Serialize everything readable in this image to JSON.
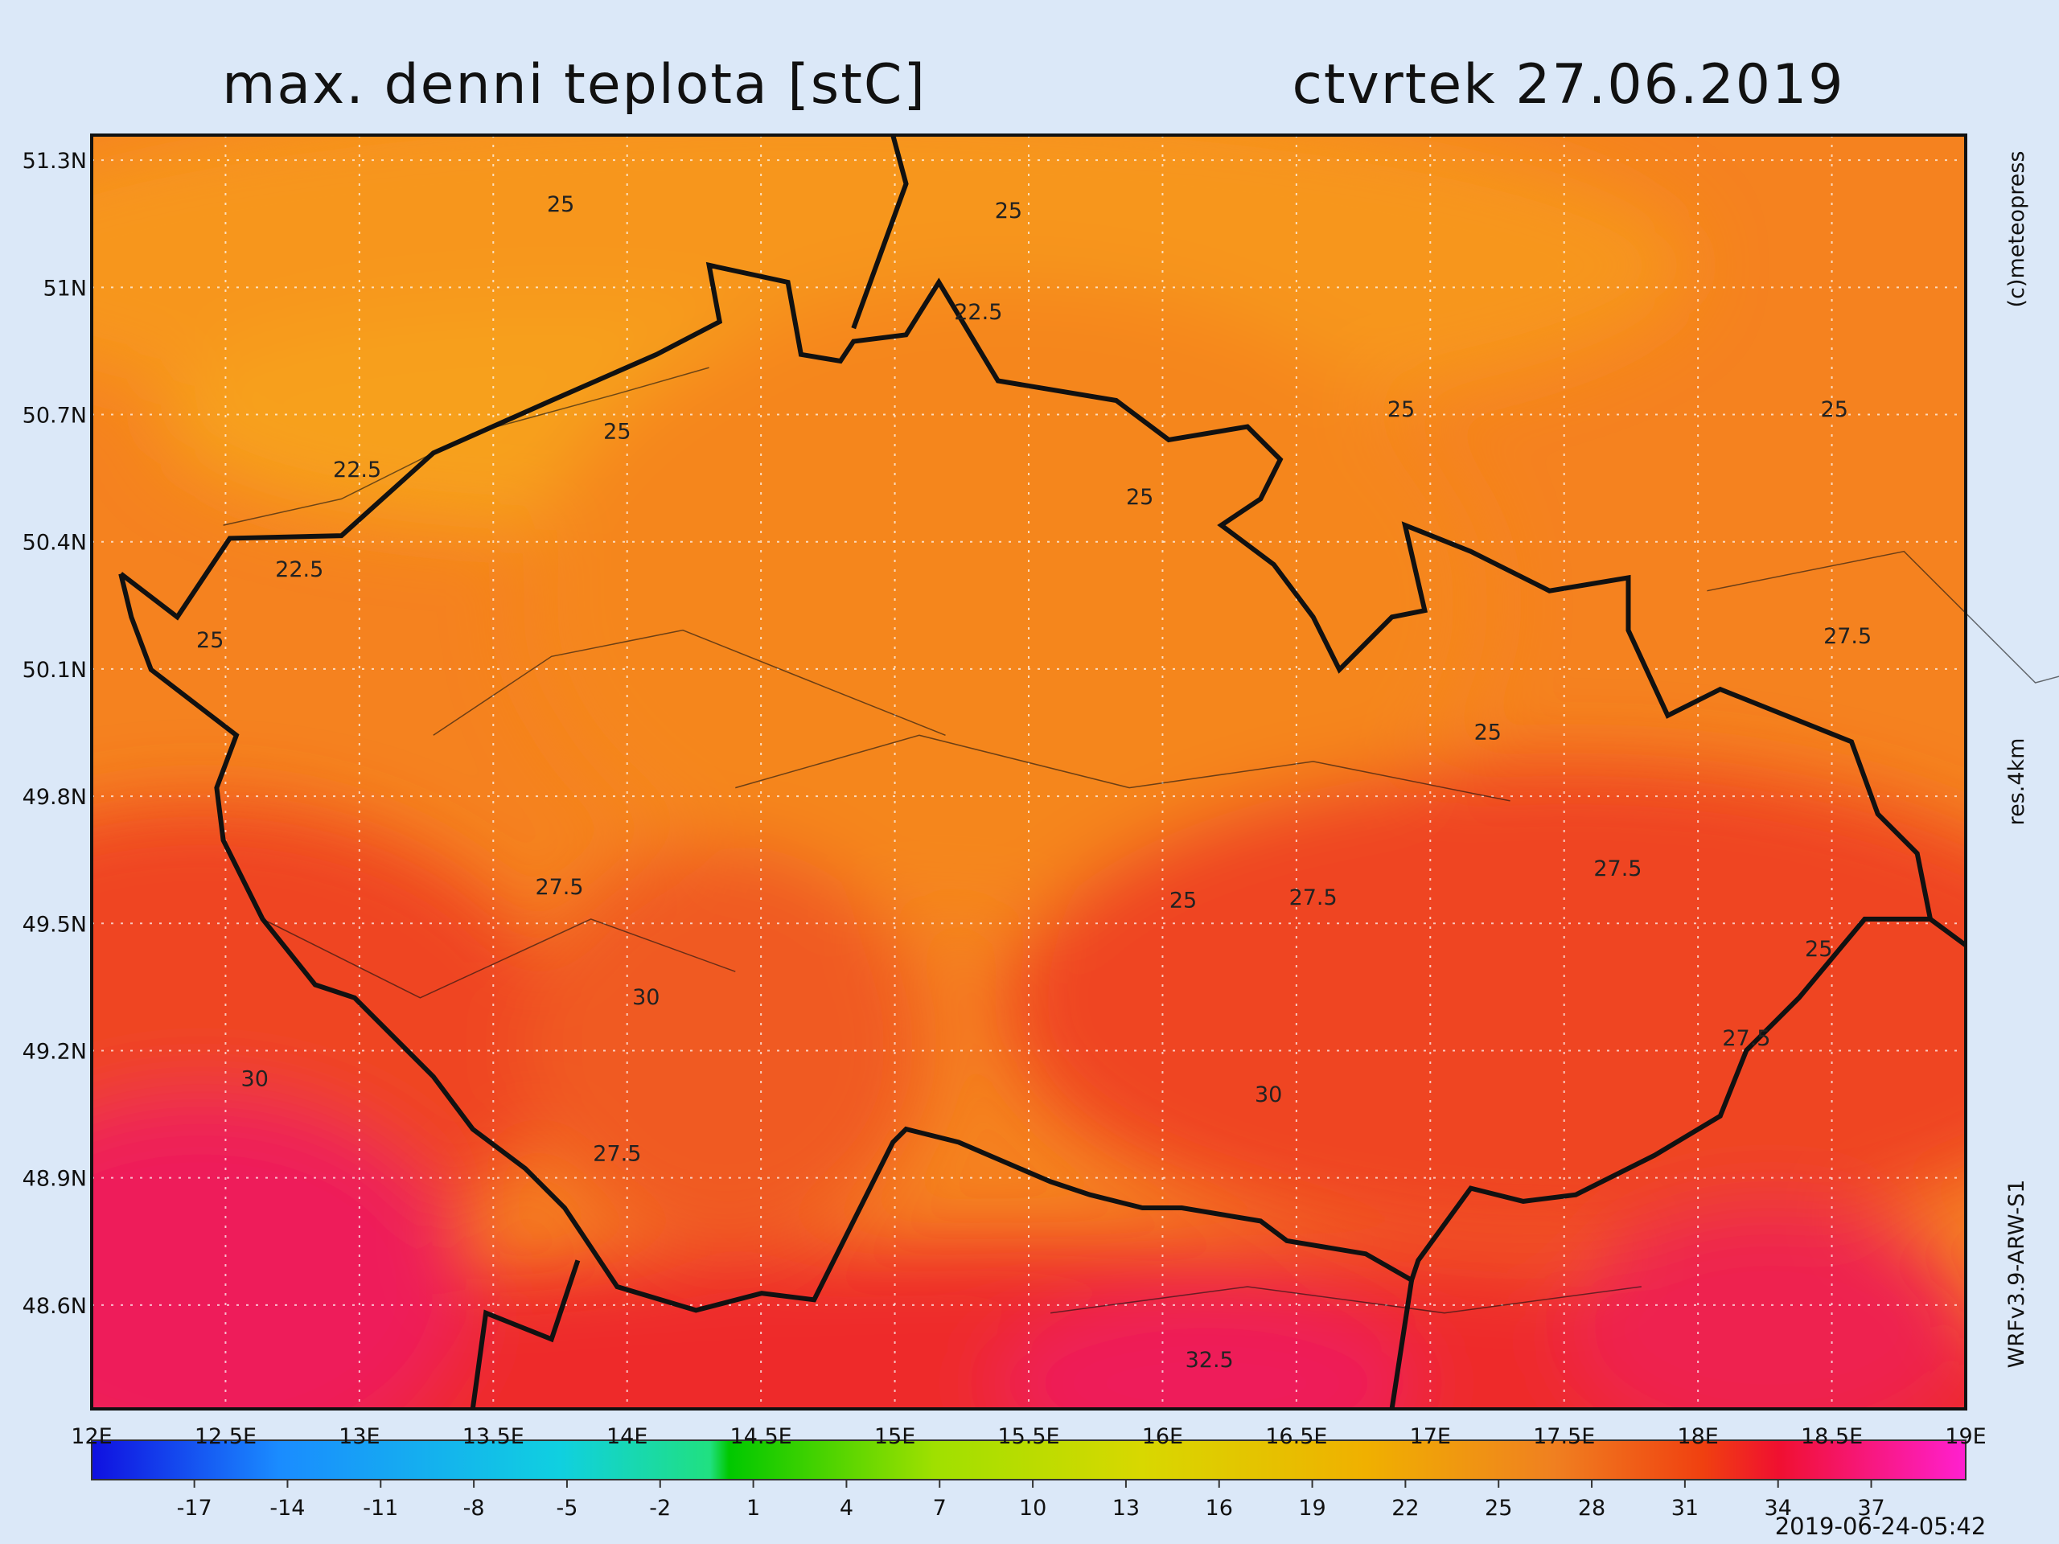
{
  "header": {
    "title": "max. denni teplota [stC]",
    "date": "ctvrtek 27.06.2019"
  },
  "map": {
    "lat_ticks": [
      {
        "value": 51.3,
        "label": "51.3N"
      },
      {
        "value": 51,
        "label": "51N"
      },
      {
        "value": 50.7,
        "label": "50.7N"
      },
      {
        "value": 50.4,
        "label": "50.4N"
      },
      {
        "value": 50.1,
        "label": "50.1N"
      },
      {
        "value": 49.8,
        "label": "49.8N"
      },
      {
        "value": 49.5,
        "label": "49.5N"
      },
      {
        "value": 49.2,
        "label": "49.2N"
      },
      {
        "value": 48.9,
        "label": "48.9N"
      },
      {
        "value": 48.6,
        "label": "48.6N"
      }
    ],
    "lon_ticks": [
      {
        "value": 12,
        "label": "12E"
      },
      {
        "value": 12.5,
        "label": "12.5E"
      },
      {
        "value": 13,
        "label": "13E"
      },
      {
        "value": 13.5,
        "label": "13.5E"
      },
      {
        "value": 14,
        "label": "14E"
      },
      {
        "value": 14.5,
        "label": "14.5E"
      },
      {
        "value": 15,
        "label": "15E"
      },
      {
        "value": 15.5,
        "label": "15.5E"
      },
      {
        "value": 16,
        "label": "16E"
      },
      {
        "value": 16.5,
        "label": "16.5E"
      },
      {
        "value": 17,
        "label": "17E"
      },
      {
        "value": 17.5,
        "label": "17.5E"
      },
      {
        "value": 18,
        "label": "18E"
      },
      {
        "value": 18.5,
        "label": "18.5E"
      },
      {
        "value": 19,
        "label": "19E"
      }
    ],
    "contour_labels": [
      25,
      25,
      22.5,
      25,
      22.5,
      25,
      25,
      25,
      22.5,
      25,
      27.5,
      25,
      27.5,
      25,
      27.5,
      27.5,
      25,
      30,
      27.5,
      30,
      30,
      27.5,
      32.5
    ]
  },
  "colorbar": {
    "ticks": [
      -17,
      -14,
      -11,
      -8,
      -5,
      -2,
      1,
      4,
      7,
      10,
      13,
      16,
      19,
      22,
      25,
      28,
      31,
      34,
      37
    ]
  },
  "side": {
    "credit": "(c)meteopress",
    "resolution": "res.4km",
    "model": "WRFv3.9-ARW-S1"
  },
  "footer": {
    "timestamp": "2019-06-24-05:42"
  }
}
